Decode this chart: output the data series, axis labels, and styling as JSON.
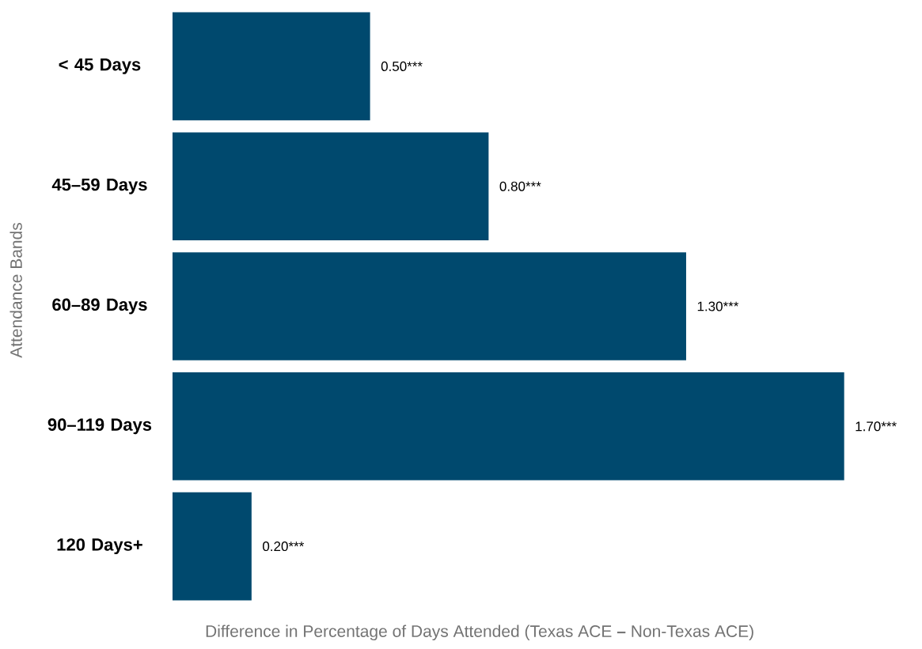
{
  "chart_data": {
    "type": "bar",
    "orientation": "horizontal",
    "xlabel": "Difference in Percentage of Days Attended (Texas ACE **–** Non-Texas ACE)",
    "ylabel": "Attendance Bands",
    "categories": [
      "< 45 Days",
      "45–59 Days",
      "60–89 Days",
      "90–119 Days",
      "120 Days+"
    ],
    "values": [
      0.5,
      0.8,
      1.3,
      1.7,
      0.2
    ],
    "value_labels": [
      "0.50***",
      "0.80***",
      "1.30***",
      "1.70***",
      "0.20***"
    ],
    "color": "#00496e"
  }
}
